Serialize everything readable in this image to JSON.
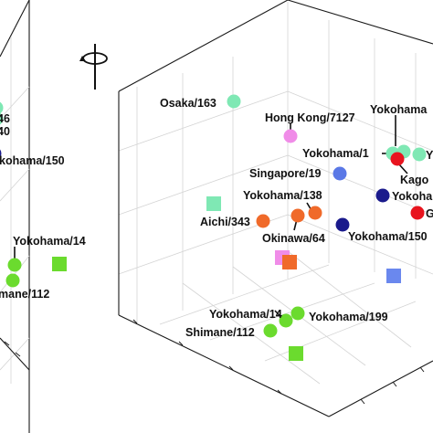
{
  "rotate_icon": "rotate-axis-icon",
  "chart_data": [
    {
      "type": "scatter",
      "panel": "left-cropped",
      "title": "",
      "grid": true,
      "points": [
        {
          "label": "46",
          "shape": "circle",
          "color": "#7fe8b4",
          "x": 0.08,
          "y": 0.95,
          "z": 0.78,
          "partial": true
        },
        {
          "label": "40",
          "shape": "circle",
          "color": "#7fe8b4",
          "x": 0.1,
          "y": 0.95,
          "z": 0.72,
          "partial": true
        },
        {
          "label": "Yokohama/150",
          "shape": "circle",
          "color": "#1a1a8c",
          "x": 0.08,
          "y": 0.85,
          "z": 0.58,
          "partial": true
        },
        {
          "label": "Yokohama/14",
          "shape": "circle",
          "color": "#6bdb2e",
          "x": 0.22,
          "y": 0.55,
          "z": 0.3
        },
        {
          "label": "mane/112",
          "shape": "circle",
          "color": "#6bdb2e",
          "x": 0.2,
          "y": 0.52,
          "z": 0.22,
          "partial": true
        },
        {
          "label": "",
          "shape": "square",
          "color": "#6bdb2e",
          "x": 0.55,
          "y": 0.55,
          "z": 0.3
        }
      ]
    },
    {
      "type": "scatter",
      "panel": "right",
      "title": "",
      "grid": true,
      "points": [
        {
          "label": "Osaka/163",
          "shape": "circle",
          "color": "#7fe8b4",
          "x": 0.05,
          "y": 0.9,
          "z": 0.85
        },
        {
          "label": "Hong Kong/7127",
          "shape": "circle",
          "color": "#f08ce8",
          "x": 0.45,
          "y": 0.85,
          "z": 0.75
        },
        {
          "label": "Yokohama/1",
          "shape": "circle",
          "color": "#7fe8b4",
          "x": 0.82,
          "y": 0.82,
          "z": 0.72
        },
        {
          "label": "Yokohama",
          "shape": "circle",
          "color": "#7fe8b4",
          "x": 0.9,
          "y": 0.85,
          "z": 0.75,
          "partial": true
        },
        {
          "label": "Y",
          "shape": "circle",
          "color": "#7fe8b4",
          "x": 0.93,
          "y": 0.86,
          "z": 0.73,
          "partial": true
        },
        {
          "label": "Kago",
          "shape": "circle",
          "color": "#e8141e",
          "x": 0.86,
          "y": 0.75,
          "z": 0.62,
          "partial": true
        },
        {
          "label": "Singapore/19",
          "shape": "circle",
          "color": "#5a78e6",
          "x": 0.55,
          "y": 0.7,
          "z": 0.6
        },
        {
          "label": "Yokoha",
          "shape": "circle",
          "color": "#1a1a8c",
          "x": 0.88,
          "y": 0.7,
          "z": 0.55,
          "partial": true
        },
        {
          "label": "G",
          "shape": "circle",
          "color": "#e8141e",
          "x": 0.92,
          "y": 0.62,
          "z": 0.5,
          "partial": true
        },
        {
          "label": "Yokohama/138",
          "shape": "circle",
          "color": "#f06a2a",
          "x": 0.42,
          "y": 0.55,
          "z": 0.48
        },
        {
          "label": "Okinawa/64",
          "shape": "circle",
          "color": "#f06a2a",
          "x": 0.38,
          "y": 0.52,
          "z": 0.46
        },
        {
          "label": "Aichi/343",
          "shape": "circle",
          "color": "#f06a2a",
          "x": 0.28,
          "y": 0.5,
          "z": 0.45
        },
        {
          "label": "Yokohama/150",
          "shape": "circle",
          "color": "#1a1a8c",
          "x": 0.62,
          "y": 0.55,
          "z": 0.45
        },
        {
          "label": "",
          "shape": "square",
          "color": "#7fe8b4",
          "x": 0.05,
          "y": 0.6,
          "z": 0.55
        },
        {
          "label": "",
          "shape": "square",
          "color": "#f08ce8",
          "x": 0.48,
          "y": 0.45,
          "z": 0.35
        },
        {
          "label": "",
          "shape": "square",
          "color": "#f06a2a",
          "x": 0.5,
          "y": 0.44,
          "z": 0.34
        },
        {
          "label": "",
          "shape": "square",
          "color": "#6a88ee",
          "x": 0.8,
          "y": 0.4,
          "z": 0.3
        },
        {
          "label": "Yokohama/14",
          "shape": "circle",
          "color": "#6bdb2e",
          "x": 0.45,
          "y": 0.3,
          "z": 0.2
        },
        {
          "label": "Yokohama/199",
          "shape": "circle",
          "color": "#6bdb2e",
          "x": 0.5,
          "y": 0.3,
          "z": 0.22
        },
        {
          "label": "Shimane/112",
          "shape": "circle",
          "color": "#6bdb2e",
          "x": 0.4,
          "y": 0.28,
          "z": 0.18
        },
        {
          "label": "",
          "shape": "square",
          "color": "#6bdb2e",
          "x": 0.48,
          "y": 0.2,
          "z": 0.1
        }
      ]
    }
  ]
}
